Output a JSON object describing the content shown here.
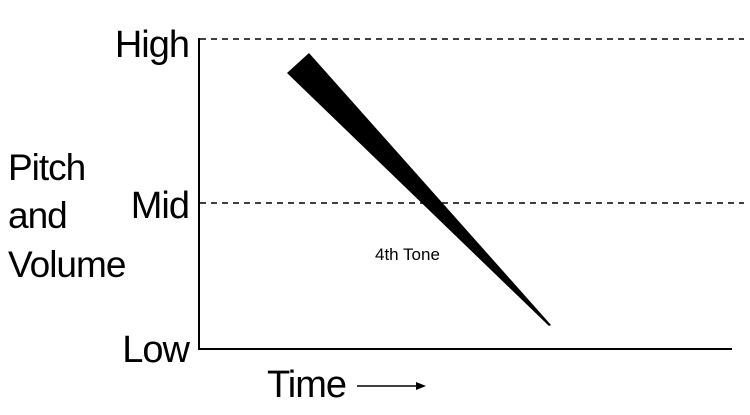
{
  "diagram": {
    "y_axis_title_lines": [
      "Pitch",
      "and",
      "Volume"
    ],
    "y_levels": [
      {
        "label": "High",
        "dashed": true
      },
      {
        "label": "Mid",
        "dashed": true
      },
      {
        "label": "Low",
        "dashed": false
      }
    ],
    "x_axis_label": "Time",
    "x_axis_arrow": "right",
    "contour": {
      "label": "4th Tone",
      "start_level": "High",
      "end_level": "Low",
      "shape": "tapering wedge, falling",
      "color": "#000000"
    }
  }
}
